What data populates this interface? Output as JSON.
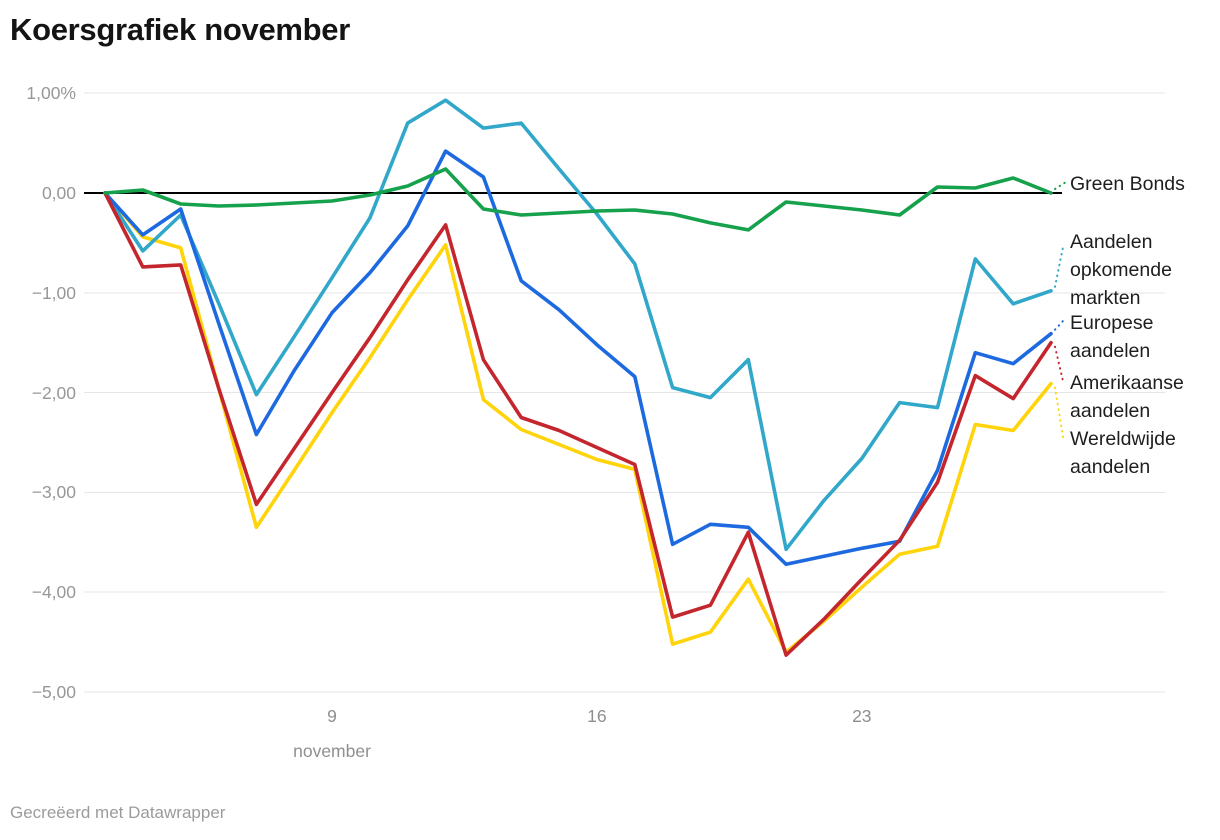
{
  "header": {
    "title": "Koersgrafiek november"
  },
  "footer": {
    "credit": "Gecreëerd met Datawrapper"
  },
  "colors": {
    "background": "#ffffff",
    "grid": "#e6e6e6",
    "zero_line": "#000000",
    "title_text": "#141414",
    "axis_text": "#979797",
    "label_text": "#1e1e1e",
    "green": "#16a14c",
    "teal": "#31a7c9",
    "blue": "#1d6ae0",
    "red": "#c4262e",
    "yellow": "#ffd40a"
  },
  "chart_data": {
    "type": "line",
    "title": "Koersgrafiek november",
    "xlabel": "november",
    "ylabel": "%",
    "ylim": [
      -5.3,
      1.1
    ],
    "grid": "horizontal",
    "zero_line": true,
    "legend_position": "right-edge-labels",
    "x": [
      3,
      4,
      5,
      6,
      7,
      8,
      9,
      10,
      11,
      12,
      13,
      14,
      15,
      16,
      17,
      18,
      19,
      20,
      21,
      22,
      23,
      24,
      25,
      26,
      27,
      28
    ],
    "x_ticks": [
      {
        "index": 6,
        "label": "9",
        "sublabel": "november"
      },
      {
        "index": 13,
        "label": "16",
        "sublabel": ""
      },
      {
        "index": 20,
        "label": "23",
        "sublabel": ""
      }
    ],
    "y_axis_ticks": [
      {
        "value": 1,
        "label": "1,00%"
      },
      {
        "value": 0,
        "label": "0,00"
      },
      {
        "value": -1,
        "label": "−1,00"
      },
      {
        "value": -2,
        "label": "−2,00"
      },
      {
        "value": -3,
        "label": "−3,00"
      },
      {
        "value": -4,
        "label": "−4,00"
      },
      {
        "value": -5,
        "label": "−5,00"
      }
    ],
    "series": [
      {
        "name": "Green Bonds",
        "label_lines": [
          "Green Bonds"
        ],
        "color": "#16a14c",
        "values": [
          0.0,
          0.03,
          -0.11,
          -0.13,
          -0.12,
          -0.1,
          -0.08,
          -0.02,
          0.07,
          0.24,
          -0.16,
          -0.22,
          -0.2,
          -0.18,
          -0.17,
          -0.21,
          -0.3,
          -0.37,
          -0.09,
          -0.13,
          -0.17,
          -0.22,
          0.06,
          0.05,
          0.15,
          0.0
        ]
      },
      {
        "name": "Aandelen opkomende markten",
        "label_lines": [
          "Aandelen",
          "opkomende",
          "markten"
        ],
        "color": "#31a7c9",
        "values": [
          0.0,
          -0.58,
          -0.22,
          -1.1,
          -2.02,
          -1.44,
          -0.85,
          -0.25,
          0.7,
          0.93,
          0.65,
          0.7,
          0.24,
          -0.21,
          -0.71,
          -1.95,
          -2.05,
          -1.67,
          -3.57,
          -3.08,
          -2.66,
          -2.1,
          -2.15,
          -0.66,
          -1.11,
          -0.98
        ]
      },
      {
        "name": "Europese aandelen",
        "label_lines": [
          "Europese",
          "aandelen"
        ],
        "color": "#1d6ae0",
        "values": [
          0.0,
          -0.42,
          -0.16,
          -1.3,
          -2.42,
          -1.78,
          -1.2,
          -0.8,
          -0.33,
          0.42,
          0.16,
          -0.88,
          -1.17,
          -1.52,
          -1.84,
          -3.52,
          -3.32,
          -3.35,
          -3.72,
          -3.64,
          -3.56,
          -3.49,
          -2.78,
          -1.6,
          -1.71,
          -1.41
        ]
      },
      {
        "name": "Amerikaanse aandelen",
        "label_lines": [
          "Amerikaanse",
          "aandelen"
        ],
        "color": "#c4262e",
        "values": [
          0.0,
          -0.74,
          -0.72,
          -1.95,
          -3.12,
          -2.56,
          -2.0,
          -1.45,
          -0.87,
          -0.32,
          -1.67,
          -2.25,
          -2.38,
          -2.55,
          -2.72,
          -4.25,
          -4.13,
          -3.4,
          -4.63,
          -4.27,
          -3.87,
          -3.48,
          -2.9,
          -1.83,
          -2.06,
          -1.5
        ]
      },
      {
        "name": "Wereldwijde aandelen",
        "label_lines": [
          "Wereldwijde",
          "aandelen"
        ],
        "color": "#ffd40a",
        "values": [
          0.0,
          -0.44,
          -0.55,
          -1.95,
          -3.35,
          -2.78,
          -2.2,
          -1.65,
          -1.07,
          -0.52,
          -2.07,
          -2.37,
          -2.52,
          -2.67,
          -2.77,
          -4.52,
          -4.4,
          -3.87,
          -4.6,
          -4.29,
          -3.95,
          -3.62,
          -3.54,
          -2.32,
          -2.38,
          -1.91
        ]
      }
    ]
  }
}
